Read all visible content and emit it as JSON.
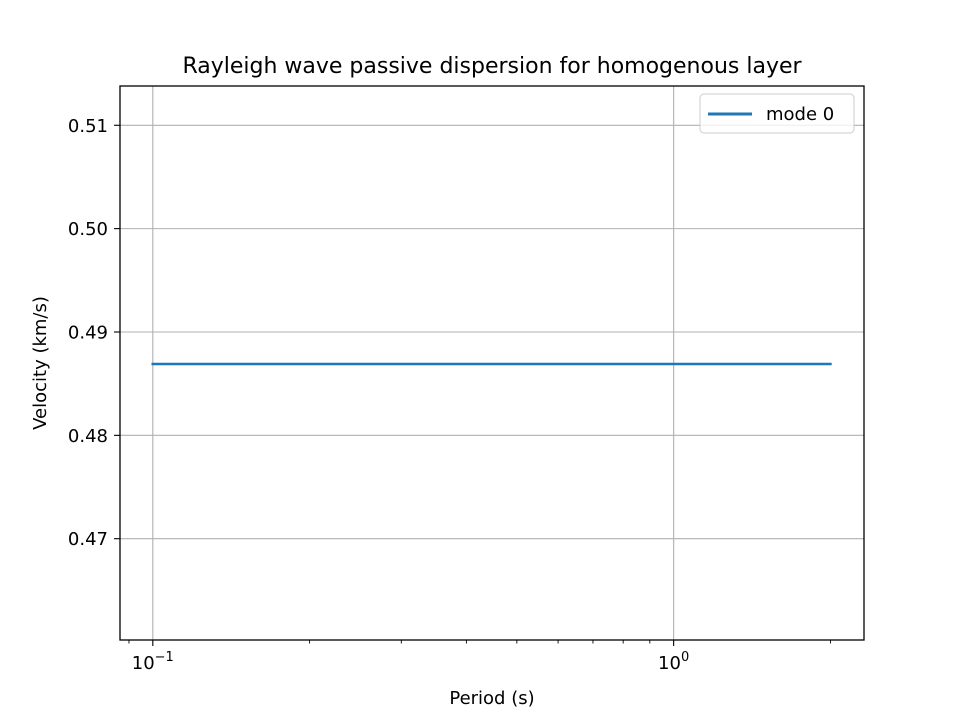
{
  "chart_data": {
    "type": "line",
    "title": "Rayleigh wave passive dispersion for homogenous layer",
    "xlabel": "Period (s)",
    "ylabel": "Velocity (km/s)",
    "xscale": "log",
    "xlim": [
      0.0865,
      2.32
    ],
    "ylim": [
      0.4602,
      0.5138
    ],
    "xticks": [
      {
        "value": 0.1,
        "base": "10",
        "exp": "−1"
      },
      {
        "value": 1,
        "base": "10",
        "exp": "0"
      }
    ],
    "yticks": [
      {
        "value": 0.47,
        "label": "0.47"
      },
      {
        "value": 0.48,
        "label": "0.48"
      },
      {
        "value": 0.49,
        "label": "0.49"
      },
      {
        "value": 0.5,
        "label": "0.50"
      },
      {
        "value": 0.51,
        "label": "0.51"
      }
    ],
    "grid": true,
    "legend_position": "upper-right",
    "series": [
      {
        "name": "mode 0",
        "color": "#1f77b4",
        "x": [
          0.1,
          0.2,
          0.5,
          1.0,
          1.5,
          2.0
        ],
        "y": [
          0.4869,
          0.4869,
          0.4869,
          0.4869,
          0.4869,
          0.4869
        ]
      }
    ]
  }
}
